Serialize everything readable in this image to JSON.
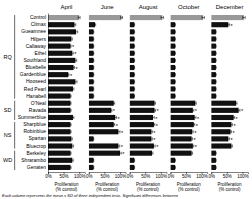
{
  "chart_data": [
    {
      "type": "bar",
      "orientation": "horizontal",
      "title": "April",
      "xlabel": "Proliferation\n(% control)",
      "categories": [
        "Control",
        "Climax",
        "Gueamnee",
        "Hilpers",
        "Callaway",
        "Ethel",
        "Southland",
        "Bluebelle",
        "Gardenblue",
        "Hooseed",
        "Red Pearl",
        "Hanabell",
        "O'Neal",
        "Ravada",
        "Summerblue",
        "Sharpblue",
        "Robinblue",
        "Spartan",
        "Bluecrop",
        "Berkeley",
        "Shrarambo",
        "Genaten"
      ],
      "values": [
        100,
        85,
        90,
        75,
        72,
        78,
        88,
        82,
        65,
        88,
        80,
        72,
        72,
        72,
        80,
        72,
        72,
        75,
        78,
        72,
        78,
        72
      ],
      "errors": [
        3,
        4,
        5,
        3,
        2,
        3,
        4,
        3,
        2,
        5,
        3,
        2,
        2,
        2,
        3,
        2,
        2,
        3,
        4,
        2,
        3,
        2
      ],
      "colors": [
        "#999999",
        "#111111",
        "#111111",
        "#111111",
        "#111111",
        "#111111",
        "#111111",
        "#111111",
        "#111111",
        "#111111",
        "#111111",
        "#111111",
        "#111111",
        "#111111",
        "#111111",
        "#111111",
        "#111111",
        "#111111",
        "#111111",
        "#111111",
        "#111111",
        "#111111"
      ],
      "xlim": [
        0,
        118
      ],
      "xticks": [
        {
          "value": 0,
          "label": "0%"
        },
        {
          "value": 50,
          "label": "50%"
        },
        {
          "value": 100,
          "label": "100%"
        }
      ],
      "annotations": [
        {
          "text": "*",
          "category": "Callaway"
        },
        {
          "text": "*",
          "category": "Ethel"
        },
        {
          "text": "*",
          "category": "Bluebelle"
        },
        {
          "text": "*",
          "category": "Gardenblue"
        }
      ],
      "groups": [
        {
          "label": "RQ",
          "from": "Control",
          "to": "Hanabell"
        },
        {
          "label": "SD",
          "from": "O'Neal",
          "to": "Summerblue"
        },
        {
          "label": "NS",
          "from": "Sharpblue",
          "to": "Bluecrop"
        },
        {
          "label": "WD",
          "from": "Berkeley",
          "to": "Genaten"
        }
      ],
      "footnote": "Each column represents the mean ± SD of three independent tests. Significant differences between"
    },
    {
      "type": "bar",
      "orientation": "horizontal",
      "title": "June",
      "xlabel": "Proliferation\n(% control)",
      "tick_labels": "x",
      "categories": [
        "Control",
        "Climax",
        "Gueamnee",
        "Hilpers",
        "Callaway",
        "Ethel",
        "Southland",
        "Bluebelle",
        "Gardenblue",
        "Hooseed",
        "Red Pearl",
        "Hanabell",
        "O'Neal",
        "Ravada",
        "Summerblue",
        "Sharpblue",
        "Robinblue",
        "Spartan",
        "Bluecrop",
        "Berkeley",
        "Shrarambo",
        "Genaten"
      ],
      "values": [
        105,
        20,
        15,
        15,
        15,
        15,
        15,
        15,
        15,
        15,
        15,
        15,
        80,
        72,
        85,
        80,
        95,
        15,
        95,
        100,
        15,
        15
      ],
      "errors": [
        3,
        2,
        1,
        1,
        1,
        1,
        1,
        1,
        1,
        1,
        1,
        1,
        3,
        2,
        4,
        3,
        5,
        1,
        4,
        4,
        1,
        1
      ],
      "colors": [
        "#999999",
        "#111111",
        "#111111",
        "#111111",
        "#111111",
        "#111111",
        "#111111",
        "#111111",
        "#111111",
        "#111111",
        "#111111",
        "#111111",
        "#111111",
        "#111111",
        "#111111",
        "#111111",
        "#111111",
        "#111111",
        "#111111",
        "#111111",
        "#111111",
        "#111111"
      ],
      "xlim": [
        0,
        118
      ],
      "xticks": [
        {
          "value": 0,
          "label": "0%"
        },
        {
          "value": 50,
          "label": "50%"
        },
        {
          "value": 100,
          "label": "100%"
        }
      ],
      "annotations": [
        {
          "text": "*",
          "category": "Ravada"
        },
        {
          "text": "*",
          "category": "Summerblue"
        },
        {
          "text": "*",
          "category": "Sharpblue"
        },
        {
          "text": "*",
          "category": "Robinblue"
        },
        {
          "text": "*",
          "category": "Bluecrop"
        },
        {
          "text": "*",
          "category": "Berkeley"
        }
      ]
    },
    {
      "type": "bar",
      "orientation": "horizontal",
      "title": "August",
      "xlabel": "Proliferation\n(% control)",
      "tick_labels": "x",
      "categories": [
        "Control",
        "Climax",
        "Gueamnee",
        "Hilpers",
        "Callaway",
        "Ethel",
        "Southland",
        "Bluebelle",
        "Gardenblue",
        "Hooseed",
        "Red Pearl",
        "Hanabell",
        "O'Neal",
        "Ravada",
        "Summerblue",
        "Sharpblue",
        "Robinblue",
        "Spartan",
        "Bluecrop",
        "Berkeley",
        "Shrarambo",
        "Genaten"
      ],
      "values": [
        105,
        15,
        15,
        15,
        15,
        15,
        15,
        15,
        15,
        15,
        15,
        15,
        80,
        80,
        75,
        78,
        70,
        70,
        78,
        72,
        15,
        15
      ],
      "errors": [
        4,
        1,
        1,
        1,
        1,
        1,
        1,
        1,
        1,
        1,
        1,
        1,
        3,
        3,
        4,
        3,
        3,
        3,
        4,
        3,
        1,
        1
      ],
      "colors": [
        "#999999",
        "#111111",
        "#111111",
        "#111111",
        "#111111",
        "#111111",
        "#111111",
        "#111111",
        "#111111",
        "#111111",
        "#111111",
        "#111111",
        "#111111",
        "#111111",
        "#111111",
        "#111111",
        "#111111",
        "#111111",
        "#111111",
        "#111111",
        "#111111",
        "#111111"
      ],
      "xlim": [
        0,
        118
      ],
      "xticks": [
        {
          "value": 0,
          "label": "0%"
        },
        {
          "value": 50,
          "label": "50%"
        },
        {
          "value": 100,
          "label": "100%"
        }
      ],
      "annotations": [
        {
          "text": "*",
          "category": "Ravada"
        },
        {
          "text": "*",
          "category": "Summerblue"
        },
        {
          "text": "*",
          "category": "Sharpblue"
        },
        {
          "text": "*",
          "category": "Robinblue"
        },
        {
          "text": "*",
          "category": "Spartan"
        },
        {
          "text": "*",
          "category": "Bluecrop"
        }
      ]
    },
    {
      "type": "bar",
      "orientation": "horizontal",
      "title": "October",
      "xlabel": "Proliferation\n(% control)",
      "tick_labels": "x",
      "categories": [
        "Control",
        "Climax",
        "Gueamnee",
        "Hilpers",
        "Callaway",
        "Ethel",
        "Southland",
        "Bluebelle",
        "Gardenblue",
        "Hooseed",
        "Red Pearl",
        "Hanabell",
        "O'Neal",
        "Ravada",
        "Summerblue",
        "Sharpblue",
        "Robinblue",
        "Spartan",
        "Bluecrop",
        "Berkeley",
        "Shrarambo",
        "Genaten"
      ],
      "values": [
        105,
        15,
        15,
        15,
        15,
        15,
        15,
        15,
        15,
        15,
        15,
        15,
        80,
        72,
        78,
        75,
        70,
        68,
        72,
        68,
        15,
        15
      ],
      "errors": [
        4,
        1,
        1,
        1,
        1,
        1,
        1,
        1,
        1,
        1,
        1,
        1,
        3,
        3,
        4,
        3,
        3,
        3,
        3,
        3,
        1,
        1
      ],
      "colors": [
        "#999999",
        "#111111",
        "#111111",
        "#111111",
        "#111111",
        "#111111",
        "#111111",
        "#111111",
        "#111111",
        "#111111",
        "#111111",
        "#111111",
        "#111111",
        "#111111",
        "#111111",
        "#111111",
        "#111111",
        "#111111",
        "#111111",
        "#111111",
        "#111111",
        "#111111"
      ],
      "xlim": [
        0,
        118
      ],
      "xticks": [
        {
          "value": 0,
          "label": "0%"
        },
        {
          "value": 50,
          "label": "50%"
        },
        {
          "value": 100,
          "label": "100%"
        }
      ],
      "annotations": [
        {
          "text": "*",
          "category": "Ravada"
        },
        {
          "text": "*",
          "category": "Summerblue"
        },
        {
          "text": "*",
          "category": "Sharpblue"
        },
        {
          "text": "*",
          "category": "Robinblue"
        },
        {
          "text": "*",
          "category": "Spartan"
        },
        {
          "text": "*",
          "category": "Bluecrop"
        }
      ]
    },
    {
      "type": "bar",
      "orientation": "horizontal",
      "title": "December",
      "xlabel": "Proliferation\n(% control)",
      "tick_labels": "x",
      "categories": [
        "Control",
        "Climax",
        "Gueamnee",
        "Hilpers",
        "Callaway",
        "Ethel",
        "Southland",
        "Bluebelle",
        "Gardenblue",
        "Hooseed",
        "Red Pearl",
        "Hanabell",
        "O'Neal",
        "Ravada",
        "Summerblue",
        "Sharpblue",
        "Robinblue",
        "Spartan",
        "Bluecrop",
        "Berkeley",
        "Shrarambo",
        "Genaten"
      ],
      "values": [
        105,
        55,
        15,
        15,
        15,
        15,
        15,
        15,
        15,
        15,
        15,
        15,
        80,
        88,
        72,
        65,
        62,
        55,
        65,
        15,
        15,
        15
      ],
      "errors": [
        4,
        4,
        1,
        1,
        1,
        1,
        1,
        1,
        1,
        1,
        1,
        1,
        3,
        4,
        3,
        3,
        3,
        4,
        3,
        1,
        1,
        1
      ],
      "colors": [
        "#999999",
        "#111111",
        "#111111",
        "#111111",
        "#111111",
        "#111111",
        "#111111",
        "#111111",
        "#111111",
        "#111111",
        "#111111",
        "#111111",
        "#111111",
        "#111111",
        "#111111",
        "#111111",
        "#111111",
        "#111111",
        "#111111",
        "#111111",
        "#111111",
        "#111111"
      ],
      "xlim": [
        0,
        118
      ],
      "xticks": [
        {
          "value": 0,
          "label": "0%"
        },
        {
          "value": 50,
          "label": "50%"
        },
        {
          "value": 100,
          "label": "100%"
        }
      ],
      "annotations": [
        {
          "text": "*",
          "category": "Climax"
        },
        {
          "text": "*",
          "category": "Ravada"
        },
        {
          "text": "*",
          "category": "Summerblue"
        },
        {
          "text": "*",
          "category": "Sharpblue"
        },
        {
          "text": "*",
          "category": "Robinblue"
        },
        {
          "text": "*",
          "category": "Spartan"
        }
      ]
    }
  ]
}
